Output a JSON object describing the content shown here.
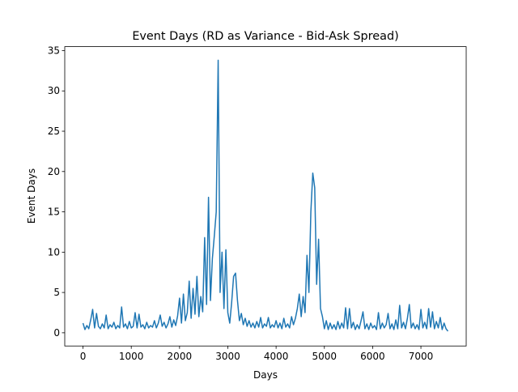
{
  "chart_data": {
    "type": "line",
    "title": "Event Days (RD as Variance - Bid-Ask Spread)",
    "xlabel": "Days",
    "ylabel": "Event Days",
    "color": "#1f77b4",
    "x": [
      0,
      40,
      80,
      120,
      160,
      200,
      240,
      280,
      320,
      360,
      400,
      440,
      480,
      520,
      560,
      600,
      640,
      680,
      720,
      760,
      800,
      840,
      880,
      920,
      960,
      1000,
      1040,
      1080,
      1120,
      1160,
      1200,
      1240,
      1280,
      1320,
      1360,
      1400,
      1440,
      1480,
      1520,
      1560,
      1600,
      1640,
      1680,
      1720,
      1760,
      1800,
      1840,
      1880,
      1920,
      1960,
      2000,
      2040,
      2080,
      2120,
      2160,
      2200,
      2240,
      2280,
      2320,
      2360,
      2400,
      2440,
      2480,
      2520,
      2560,
      2600,
      2640,
      2680,
      2720,
      2760,
      2800,
      2840,
      2880,
      2920,
      2960,
      3000,
      3040,
      3080,
      3120,
      3160,
      3200,
      3240,
      3280,
      3320,
      3360,
      3400,
      3440,
      3480,
      3520,
      3560,
      3600,
      3640,
      3680,
      3720,
      3760,
      3800,
      3840,
      3880,
      3920,
      3960,
      4000,
      4040,
      4080,
      4120,
      4160,
      4200,
      4240,
      4280,
      4320,
      4360,
      4400,
      4440,
      4480,
      4520,
      4560,
      4600,
      4640,
      4680,
      4720,
      4760,
      4800,
      4840,
      4880,
      4920,
      4960,
      5000,
      5040,
      5080,
      5120,
      5160,
      5200,
      5240,
      5280,
      5320,
      5360,
      5400,
      5440,
      5480,
      5520,
      5560,
      5600,
      5640,
      5680,
      5720,
      5760,
      5800,
      5840,
      5880,
      5920,
      5960,
      6000,
      6040,
      6080,
      6120,
      6160,
      6200,
      6240,
      6280,
      6320,
      6360,
      6400,
      6440,
      6480,
      6520,
      6560,
      6600,
      6640,
      6680,
      6720,
      6760,
      6800,
      6840,
      6880,
      6920,
      6960,
      7000,
      7040,
      7080,
      7120,
      7160,
      7200,
      7240,
      7280,
      7320,
      7360,
      7400,
      7440,
      7480,
      7520,
      7560
    ],
    "values": [
      1.2,
      0.4,
      0.9,
      0.5,
      1.6,
      2.9,
      0.6,
      2.4,
      0.8,
      0.5,
      1.1,
      0.6,
      2.2,
      0.5,
      1.0,
      0.7,
      1.3,
      0.5,
      0.9,
      0.6,
      3.2,
      0.7,
      1.1,
      0.5,
      1.4,
      0.6,
      0.8,
      2.5,
      0.6,
      2.3,
      0.7,
      1.0,
      0.5,
      1.3,
      0.6,
      0.9,
      0.7,
      1.5,
      0.6,
      1.2,
      2.2,
      0.8,
      1.3,
      0.6,
      1.1,
      2.0,
      0.7,
      1.6,
      0.9,
      2.1,
      4.3,
      1.2,
      4.8,
      1.5,
      2.5,
      6.4,
      1.8,
      5.5,
      2.3,
      7.0,
      2.0,
      4.5,
      2.6,
      11.8,
      3.5,
      16.8,
      4.0,
      9.2,
      12.0,
      15.0,
      33.8,
      5.0,
      10.0,
      3.0,
      10.3,
      2.5,
      1.2,
      3.8,
      7.0,
      7.4,
      4.0,
      1.5,
      2.4,
      1.0,
      1.8,
      0.8,
      1.5,
      0.7,
      1.2,
      0.6,
      1.4,
      0.7,
      1.9,
      0.6,
      1.1,
      0.8,
      1.9,
      0.6,
      1.0,
      0.7,
      1.5,
      0.6,
      1.2,
      0.5,
      1.8,
      0.7,
      1.1,
      0.6,
      2.0,
      1.0,
      1.8,
      3.0,
      4.8,
      2.0,
      4.5,
      2.5,
      9.6,
      5.0,
      15.0,
      19.8,
      18.0,
      6.0,
      11.6,
      3.0,
      2.0,
      0.5,
      1.5,
      0.4,
      1.2,
      0.5,
      1.0,
      0.4,
      1.4,
      0.5,
      1.2,
      0.6,
      3.1,
      0.5,
      3.0,
      0.6,
      1.3,
      0.4,
      1.0,
      0.5,
      1.5,
      2.6,
      0.5,
      1.1,
      0.4,
      1.2,
      0.6,
      0.9,
      0.4,
      2.5,
      0.5,
      1.2,
      0.6,
      1.0,
      2.4,
      0.5,
      1.1,
      0.4,
      1.6,
      0.5,
      3.4,
      0.6,
      1.3,
      0.5,
      1.8,
      3.5,
      0.6,
      1.2,
      0.5,
      1.0,
      0.4,
      2.9,
      0.6,
      1.3,
      0.5,
      3.0,
      0.7,
      2.6,
      0.5,
      1.4,
      0.6,
      1.9,
      0.4,
      1.2,
      0.5,
      0.2
    ],
    "xlim": [
      -378,
      7938
    ],
    "ylim": [
      -1.64,
      35.49
    ],
    "xticks": [
      0,
      1000,
      2000,
      3000,
      4000,
      5000,
      6000,
      7000
    ],
    "yticks": [
      0,
      5,
      10,
      15,
      20,
      25,
      30,
      35
    ]
  }
}
